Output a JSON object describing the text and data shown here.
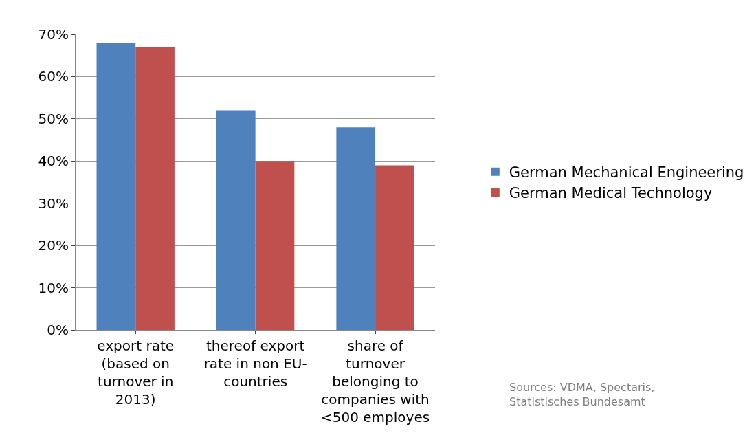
{
  "chart_data": {
    "type": "bar",
    "categories": [
      "export rate (based on turnover in 2013)",
      "thereof export rate in non EU-countries",
      "share of turnover belonging to companies with <500 employes"
    ],
    "series": [
      {
        "name": "German Mechanical Engineering",
        "color": "#4f81bd",
        "values": [
          68,
          52,
          48
        ]
      },
      {
        "name": "German Medical Technology",
        "color": "#c0504d",
        "values": [
          67,
          40,
          39
        ]
      }
    ],
    "ylim": [
      0,
      70
    ],
    "yticks": [
      {
        "value": 0,
        "label": "0%"
      },
      {
        "value": 10,
        "label": "10%"
      },
      {
        "value": 20,
        "label": "20%"
      },
      {
        "value": 30,
        "label": "30%"
      },
      {
        "value": 40,
        "label": "40%"
      },
      {
        "value": 50,
        "label": "50%"
      },
      {
        "value": 60,
        "label": "60%"
      },
      {
        "value": 70,
        "label": "70%"
      }
    ],
    "grid": "y",
    "legend": "right",
    "annotations": [
      "Sources: VDMA, Spectaris, Statistisches Bundesamt"
    ]
  }
}
